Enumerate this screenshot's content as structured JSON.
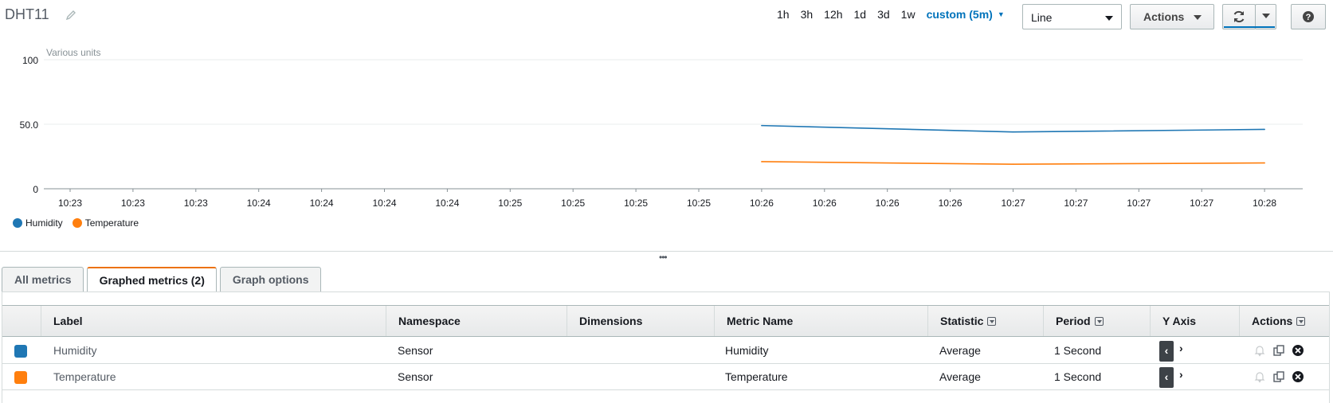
{
  "header": {
    "title": "DHT11",
    "time_ranges": [
      "1h",
      "3h",
      "12h",
      "1d",
      "3d",
      "1w"
    ],
    "custom_range": "custom (5m)",
    "chart_type_value": "Line",
    "actions_label": "Actions"
  },
  "chart_data": {
    "type": "line",
    "ylabel": "Various units",
    "ylim": [
      0,
      100
    ],
    "y_ticks": [
      "100",
      "50.0",
      "0"
    ],
    "x_tick_labels": [
      "10:23",
      "10:23",
      "10:23",
      "10:24",
      "10:24",
      "10:24",
      "10:24",
      "10:25",
      "10:25",
      "10:25",
      "10:25",
      "10:26",
      "10:26",
      "10:26",
      "10:26",
      "10:27",
      "10:27",
      "10:27",
      "10:27",
      "10:28"
    ],
    "x": [
      "10:26:00",
      "10:27:00",
      "10:28:00"
    ],
    "series": [
      {
        "name": "Humidity",
        "color": "#1f77b4",
        "values": [
          49,
          44,
          46
        ]
      },
      {
        "name": "Temperature",
        "color": "#ff7f0e",
        "values": [
          21,
          19,
          20
        ]
      }
    ],
    "grid": true,
    "legend_position": "bottom-left"
  },
  "tabs": [
    {
      "label": "All metrics",
      "active": false
    },
    {
      "label": "Graphed metrics (2)",
      "active": true
    },
    {
      "label": "Graph options",
      "active": false
    }
  ],
  "table": {
    "columns": [
      "Label",
      "Namespace",
      "Dimensions",
      "Metric Name",
      "Statistic",
      "Period",
      "Y Axis",
      "Actions"
    ],
    "rows": [
      {
        "color": "#1f77b4",
        "label": "Humidity",
        "namespace": "Sensor",
        "dimensions": "",
        "metric_name": "Humidity",
        "statistic": "Average",
        "period": "1 Second"
      },
      {
        "color": "#ff7f0e",
        "label": "Temperature",
        "namespace": "Sensor",
        "dimensions": "",
        "metric_name": "Temperature",
        "statistic": "Average",
        "period": "1 Second"
      }
    ]
  },
  "icons": {
    "edit": "pencil-icon",
    "refresh": "refresh-icon",
    "help": "help-icon",
    "alarm": "bell-icon",
    "duplicate": "copy-icon",
    "remove": "close-circle-icon"
  }
}
